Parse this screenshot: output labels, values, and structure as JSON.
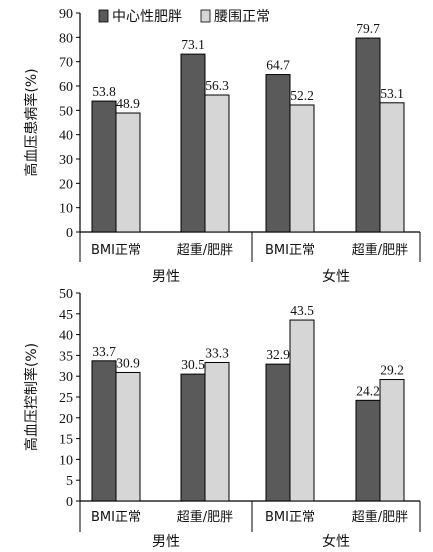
{
  "chart_data": [
    {
      "type": "bar",
      "ylabel": "高血压患病率(%)",
      "ylim": [
        0,
        90
      ],
      "yticks": [
        0,
        10,
        20,
        30,
        40,
        50,
        60,
        70,
        80,
        90
      ],
      "legend_position": "top-left",
      "categories": [
        "BMI正常",
        "超重/肥胖",
        "BMI正常",
        "超重/肥胖"
      ],
      "groups": [
        {
          "label": "男性",
          "categories": [
            "BMI正常",
            "超重/肥胖"
          ]
        },
        {
          "label": "女性",
          "categories": [
            "BMI正常",
            "超重/肥胖"
          ]
        }
      ],
      "series": [
        {
          "name": "中心性肥胖",
          "color": "#5a5a5a",
          "values": [
            53.8,
            73.1,
            64.7,
            79.7
          ],
          "labels": [
            "53.8",
            "73.1",
            "64.7",
            "79.7"
          ]
        },
        {
          "name": "腰围正常",
          "color": "#d6d6d6",
          "values": [
            48.9,
            56.3,
            52.2,
            53.1
          ],
          "labels": [
            "48.9",
            "56.3",
            "52.2",
            "53.1"
          ]
        }
      ]
    },
    {
      "type": "bar",
      "ylabel": "高血压控制率(%)",
      "ylim": [
        0,
        50
      ],
      "yticks": [
        0,
        5,
        10,
        15,
        20,
        25,
        30,
        35,
        40,
        45,
        50
      ],
      "categories": [
        "BMI正常",
        "超重/肥胖",
        "BMI正常",
        "超重/肥胖"
      ],
      "groups": [
        {
          "label": "男性",
          "categories": [
            "BMI正常",
            "超重/肥胖"
          ]
        },
        {
          "label": "女性",
          "categories": [
            "BMI正常",
            "超重/肥胖"
          ]
        }
      ],
      "series": [
        {
          "name": "中心性肥胖",
          "color": "#5a5a5a",
          "values": [
            33.7,
            30.5,
            32.9,
            24.2
          ],
          "labels": [
            "33.7",
            "30.5",
            "32.9",
            "24.2"
          ]
        },
        {
          "name": "腰围正常",
          "color": "#d6d6d6",
          "values": [
            30.9,
            33.3,
            43.5,
            29.2
          ],
          "labels": [
            "30.9",
            "33.3",
            "43.5",
            "29.2"
          ]
        }
      ]
    }
  ]
}
